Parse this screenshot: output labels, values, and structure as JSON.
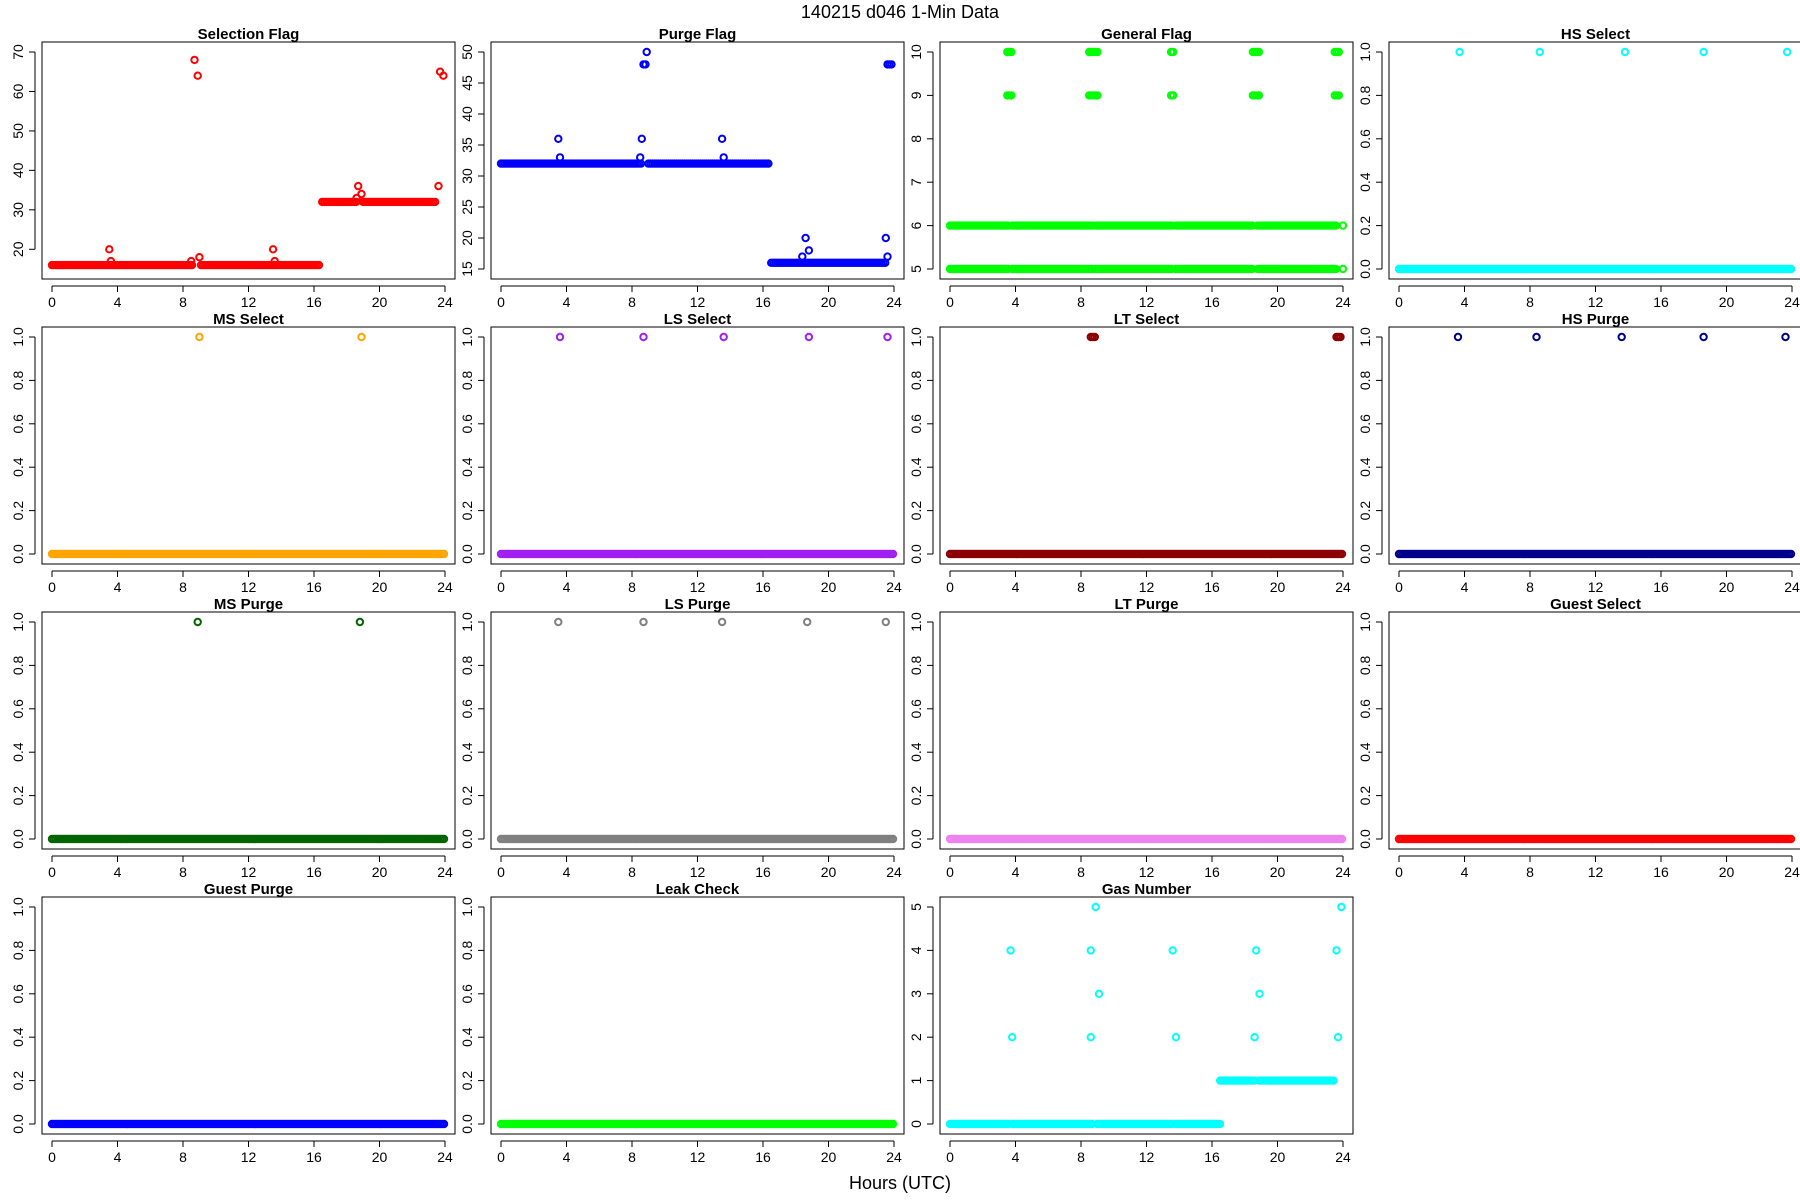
{
  "figure": {
    "title": "140215   d046   1-Min Data",
    "xlabel": "Hours (UTC)"
  },
  "chart_data": [
    {
      "type": "scatter",
      "title": "Selection Flag",
      "color": "#ff0000",
      "xlim": [
        0,
        24
      ],
      "xticks": [
        0,
        4,
        8,
        12,
        16,
        20,
        24
      ],
      "ylim": [
        15,
        70
      ],
      "yticks": [
        20,
        30,
        40,
        50,
        60,
        70
      ],
      "runs": [
        {
          "from": 0,
          "to": 8.6,
          "y": 16
        },
        {
          "from": 9.1,
          "to": 16.4,
          "y": 16
        },
        {
          "from": 16.5,
          "to": 18.6,
          "y": 32
        },
        {
          "from": 19.0,
          "to": 23.5,
          "y": 32
        }
      ],
      "points": [
        [
          3.5,
          20
        ],
        [
          3.6,
          17
        ],
        [
          8.5,
          17
        ],
        [
          8.7,
          68
        ],
        [
          8.9,
          64
        ],
        [
          9.0,
          18
        ],
        [
          13.5,
          20
        ],
        [
          13.6,
          17
        ],
        [
          18.6,
          33
        ],
        [
          18.7,
          36
        ],
        [
          18.9,
          34
        ],
        [
          23.6,
          36
        ],
        [
          23.7,
          65
        ],
        [
          23.9,
          64
        ]
      ]
    },
    {
      "type": "scatter",
      "title": "Purge Flag",
      "color": "#0000ff",
      "xlim": [
        0,
        24
      ],
      "xticks": [
        0,
        4,
        8,
        12,
        16,
        20,
        24
      ],
      "ylim": [
        15,
        50
      ],
      "yticks": [
        15,
        20,
        25,
        30,
        35,
        40,
        45,
        50
      ],
      "runs": [
        {
          "from": 0,
          "to": 8.6,
          "y": 32
        },
        {
          "from": 9.0,
          "to": 16.4,
          "y": 32
        },
        {
          "from": 16.5,
          "to": 23.5,
          "y": 16
        },
        {
          "from": 8.7,
          "to": 8.9,
          "y": 48
        },
        {
          "from": 23.6,
          "to": 23.9,
          "y": 48
        }
      ],
      "points": [
        [
          3.5,
          36
        ],
        [
          3.6,
          33
        ],
        [
          8.5,
          33
        ],
        [
          8.6,
          36
        ],
        [
          8.9,
          50
        ],
        [
          13.5,
          36
        ],
        [
          13.6,
          33
        ],
        [
          18.4,
          17
        ],
        [
          18.6,
          20
        ],
        [
          18.8,
          18
        ],
        [
          23.5,
          20
        ],
        [
          23.6,
          17
        ]
      ]
    },
    {
      "type": "scatter",
      "title": "General Flag",
      "color": "#00ff00",
      "xlim": [
        0,
        24
      ],
      "xticks": [
        0,
        4,
        8,
        12,
        16,
        20,
        24
      ],
      "ylim": [
        5,
        10
      ],
      "yticks": [
        5,
        6,
        7,
        8,
        9,
        10
      ],
      "runs": [
        {
          "from": 0,
          "to": 3.6,
          "y": 6
        },
        {
          "from": 3.8,
          "to": 8.7,
          "y": 6
        },
        {
          "from": 9.0,
          "to": 13.6,
          "y": 6
        },
        {
          "from": 13.8,
          "to": 18.5,
          "y": 6
        },
        {
          "from": 18.8,
          "to": 23.6,
          "y": 6
        },
        {
          "from": 0,
          "to": 3.6,
          "y": 5
        },
        {
          "from": 3.8,
          "to": 8.7,
          "y": 5
        },
        {
          "from": 9.0,
          "to": 13.6,
          "y": 5
        },
        {
          "from": 13.8,
          "to": 18.5,
          "y": 5
        },
        {
          "from": 18.8,
          "to": 23.6,
          "y": 5
        },
        {
          "from": 3.5,
          "to": 3.8,
          "y": 10
        },
        {
          "from": 8.5,
          "to": 8.9,
          "y": 10
        },
        {
          "from": 13.5,
          "to": 13.7,
          "y": 10
        },
        {
          "from": 18.5,
          "to": 18.9,
          "y": 10
        },
        {
          "from": 23.5,
          "to": 23.8,
          "y": 10
        },
        {
          "from": 3.5,
          "to": 3.8,
          "y": 9
        },
        {
          "from": 8.5,
          "to": 8.9,
          "y": 9
        },
        {
          "from": 13.5,
          "to": 13.7,
          "y": 9
        },
        {
          "from": 18.5,
          "to": 18.9,
          "y": 9
        },
        {
          "from": 23.5,
          "to": 23.8,
          "y": 9
        }
      ],
      "points": [
        [
          9.0,
          10
        ],
        [
          9.0,
          9
        ],
        [
          8.9,
          6
        ],
        [
          8.9,
          5
        ],
        [
          24.0,
          6
        ],
        [
          24.0,
          5
        ]
      ]
    },
    {
      "type": "scatter",
      "title": "HS Select",
      "color": "#00ffff",
      "xlim": [
        0,
        24
      ],
      "xticks": [
        0,
        4,
        8,
        12,
        16,
        20,
        24
      ],
      "ylim": [
        0,
        1
      ],
      "yticks": [
        0.0,
        0.2,
        0.4,
        0.6,
        0.8,
        1.0
      ],
      "runs": [
        {
          "from": 0,
          "to": 24,
          "y": 0
        }
      ],
      "points": [
        [
          3.7,
          1
        ],
        [
          8.6,
          1
        ],
        [
          13.8,
          1
        ],
        [
          18.6,
          1
        ],
        [
          23.7,
          1
        ]
      ]
    },
    {
      "type": "scatter",
      "title": "MS Select",
      "color": "#ffa500",
      "xlim": [
        0,
        24
      ],
      "xticks": [
        0,
        4,
        8,
        12,
        16,
        20,
        24
      ],
      "ylim": [
        0,
        1
      ],
      "yticks": [
        0.0,
        0.2,
        0.4,
        0.6,
        0.8,
        1.0
      ],
      "runs": [
        {
          "from": 0,
          "to": 24,
          "y": 0
        }
      ],
      "points": [
        [
          9.0,
          1
        ],
        [
          18.9,
          1
        ]
      ]
    },
    {
      "type": "scatter",
      "title": "LS Select",
      "color": "#a020f0",
      "xlim": [
        0,
        24
      ],
      "xticks": [
        0,
        4,
        8,
        12,
        16,
        20,
        24
      ],
      "ylim": [
        0,
        1
      ],
      "yticks": [
        0.0,
        0.2,
        0.4,
        0.6,
        0.8,
        1.0
      ],
      "runs": [
        {
          "from": 0,
          "to": 24,
          "y": 0
        }
      ],
      "points": [
        [
          3.6,
          1
        ],
        [
          8.7,
          1
        ],
        [
          13.6,
          1
        ],
        [
          18.8,
          1
        ],
        [
          23.6,
          1
        ]
      ]
    },
    {
      "type": "scatter",
      "title": "LT Select",
      "color": "#8b0000",
      "xlim": [
        0,
        24
      ],
      "xticks": [
        0,
        4,
        8,
        12,
        16,
        20,
        24
      ],
      "ylim": [
        0,
        1
      ],
      "yticks": [
        0.0,
        0.2,
        0.4,
        0.6,
        0.8,
        1.0
      ],
      "runs": [
        {
          "from": 0,
          "to": 24,
          "y": 0
        },
        {
          "from": 8.6,
          "to": 8.9,
          "y": 1
        },
        {
          "from": 23.6,
          "to": 23.9,
          "y": 1
        }
      ],
      "points": []
    },
    {
      "type": "scatter",
      "title": "HS Purge",
      "color": "#00008b",
      "xlim": [
        0,
        24
      ],
      "xticks": [
        0,
        4,
        8,
        12,
        16,
        20,
        24
      ],
      "ylim": [
        0,
        1
      ],
      "yticks": [
        0.0,
        0.2,
        0.4,
        0.6,
        0.8,
        1.0
      ],
      "runs": [
        {
          "from": 0,
          "to": 24,
          "y": 0
        }
      ],
      "points": [
        [
          3.6,
          1
        ],
        [
          8.4,
          1
        ],
        [
          13.6,
          1
        ],
        [
          18.6,
          1
        ],
        [
          23.6,
          1
        ]
      ]
    },
    {
      "type": "scatter",
      "title": "MS Purge",
      "color": "#006400",
      "xlim": [
        0,
        24
      ],
      "xticks": [
        0,
        4,
        8,
        12,
        16,
        20,
        24
      ],
      "ylim": [
        0,
        1
      ],
      "yticks": [
        0.0,
        0.2,
        0.4,
        0.6,
        0.8,
        1.0
      ],
      "runs": [
        {
          "from": 0,
          "to": 24,
          "y": 0
        }
      ],
      "points": [
        [
          8.9,
          1
        ],
        [
          18.8,
          1
        ]
      ]
    },
    {
      "type": "scatter",
      "title": "LS Purge",
      "color": "#808080",
      "xlim": [
        0,
        24
      ],
      "xticks": [
        0,
        4,
        8,
        12,
        16,
        20,
        24
      ],
      "ylim": [
        0,
        1
      ],
      "yticks": [
        0.0,
        0.2,
        0.4,
        0.6,
        0.8,
        1.0
      ],
      "runs": [
        {
          "from": 0,
          "to": 24,
          "y": 0
        }
      ],
      "points": [
        [
          3.5,
          1
        ],
        [
          8.7,
          1
        ],
        [
          13.5,
          1
        ],
        [
          18.7,
          1
        ],
        [
          23.5,
          1
        ]
      ]
    },
    {
      "type": "scatter",
      "title": "LT Purge",
      "color": "#ee82ee",
      "xlim": [
        0,
        24
      ],
      "xticks": [
        0,
        4,
        8,
        12,
        16,
        20,
        24
      ],
      "ylim": [
        0,
        1
      ],
      "yticks": [
        0.0,
        0.2,
        0.4,
        0.6,
        0.8,
        1.0
      ],
      "runs": [
        {
          "from": 0,
          "to": 24,
          "y": 0
        }
      ],
      "points": []
    },
    {
      "type": "scatter",
      "title": "Guest Select",
      "color": "#ff0000",
      "xlim": [
        0,
        24
      ],
      "xticks": [
        0,
        4,
        8,
        12,
        16,
        20,
        24
      ],
      "ylim": [
        0,
        1
      ],
      "yticks": [
        0.0,
        0.2,
        0.4,
        0.6,
        0.8,
        1.0
      ],
      "runs": [
        {
          "from": 0,
          "to": 24,
          "y": 0
        }
      ],
      "points": []
    },
    {
      "type": "scatter",
      "title": "Guest Purge",
      "color": "#0000ff",
      "xlim": [
        0,
        24
      ],
      "xticks": [
        0,
        4,
        8,
        12,
        16,
        20,
        24
      ],
      "ylim": [
        0,
        1
      ],
      "yticks": [
        0.0,
        0.2,
        0.4,
        0.6,
        0.8,
        1.0
      ],
      "runs": [
        {
          "from": 0,
          "to": 24,
          "y": 0
        }
      ],
      "points": []
    },
    {
      "type": "scatter",
      "title": "Leak Check",
      "color": "#00ff00",
      "xlim": [
        0,
        24
      ],
      "xticks": [
        0,
        4,
        8,
        12,
        16,
        20,
        24
      ],
      "ylim": [
        0,
        1
      ],
      "yticks": [
        0.0,
        0.2,
        0.4,
        0.6,
        0.8,
        1.0
      ],
      "runs": [
        {
          "from": 0,
          "to": 24,
          "y": 0
        }
      ],
      "points": []
    },
    {
      "type": "scatter",
      "title": "Gas Number",
      "color": "#00ffff",
      "xlim": [
        0,
        24
      ],
      "xticks": [
        0,
        4,
        8,
        12,
        16,
        20,
        24
      ],
      "ylim": [
        0,
        5
      ],
      "yticks": [
        0,
        1,
        2,
        3,
        4,
        5
      ],
      "runs": [
        {
          "from": 0,
          "to": 3.6,
          "y": 0
        },
        {
          "from": 3.8,
          "to": 8.7,
          "y": 0
        },
        {
          "from": 9.0,
          "to": 13.6,
          "y": 0
        },
        {
          "from": 13.8,
          "to": 16.5,
          "y": 0
        },
        {
          "from": 16.5,
          "to": 18.6,
          "y": 1
        },
        {
          "from": 18.9,
          "to": 23.5,
          "y": 1
        }
      ],
      "points": [
        [
          3.7,
          4
        ],
        [
          3.8,
          2
        ],
        [
          8.6,
          4
        ],
        [
          8.6,
          2
        ],
        [
          8.9,
          5
        ],
        [
          9.1,
          3
        ],
        [
          13.6,
          4
        ],
        [
          13.8,
          2
        ],
        [
          18.7,
          4
        ],
        [
          18.6,
          2
        ],
        [
          18.9,
          3
        ],
        [
          23.6,
          4
        ],
        [
          23.7,
          2
        ],
        [
          23.9,
          5
        ]
      ]
    }
  ]
}
